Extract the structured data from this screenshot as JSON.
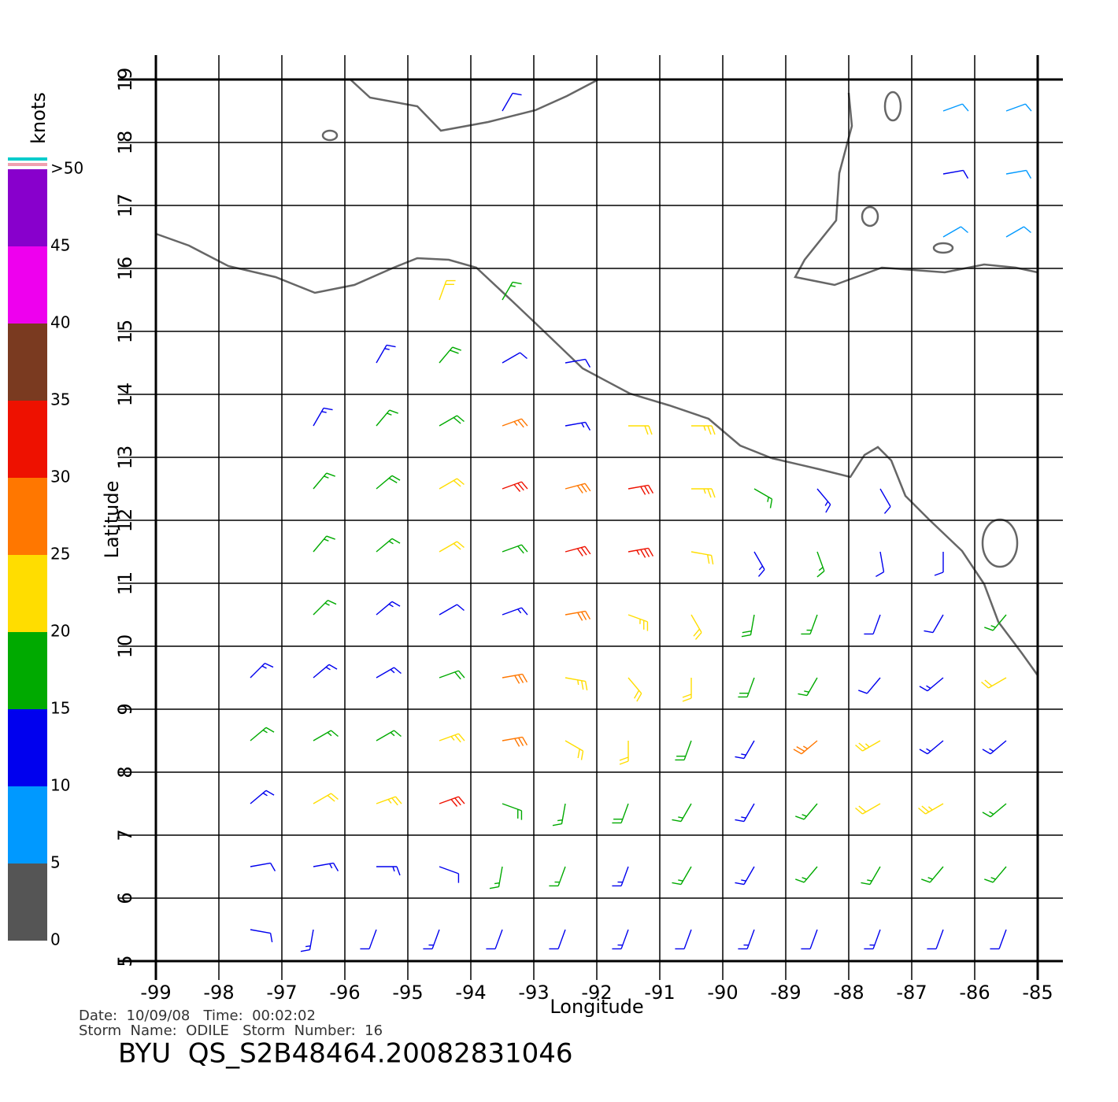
{
  "chart_data": {
    "type": "barb",
    "x_label": "Longitude",
    "y_label": "Latitude",
    "xlim": [
      -99,
      -85
    ],
    "ylim": [
      5,
      19
    ],
    "xticks": [
      -99,
      -98,
      -97,
      -96,
      -95,
      -94,
      -93,
      -92,
      -91,
      -90,
      -89,
      -88,
      -87,
      -86,
      -85
    ],
    "yticks": [
      5,
      6,
      7,
      8,
      9,
      10,
      11,
      12,
      13,
      14,
      15,
      16,
      17,
      18,
      19
    ],
    "grid": true,
    "colorbar": {
      "label": "knots",
      "ticks": [
        0,
        5,
        10,
        15,
        20,
        25,
        30,
        35,
        40,
        45,
        {
          "value": 50,
          "label": ">50"
        }
      ],
      "colors": [
        "#555555",
        "#0099ff",
        "#0000ee",
        "#00aa00",
        "#ffdd00",
        "#ff7700",
        "#ee1100",
        "#7a3a20",
        "#ee00ee",
        "#8800cc"
      ]
    },
    "points": [
      [
        -94.5,
        15.5,
        22,
        20
      ],
      [
        -93.5,
        15.5,
        15,
        30
      ],
      [
        -95.5,
        14.5,
        14,
        30
      ],
      [
        -94.5,
        14.5,
        18,
        40
      ],
      [
        -93.5,
        14.5,
        12,
        60
      ],
      [
        -92.5,
        14.5,
        10,
        80
      ],
      [
        -96.5,
        13.5,
        13,
        30
      ],
      [
        -95.5,
        13.5,
        16,
        40
      ],
      [
        -94.5,
        13.5,
        18,
        60
      ],
      [
        -93.5,
        13.5,
        26,
        70
      ],
      [
        -92.5,
        13.5,
        14,
        80
      ],
      [
        -91.5,
        13.5,
        22,
        90
      ],
      [
        -90.5,
        13.5,
        24,
        90
      ],
      [
        -96.5,
        12.5,
        17,
        40
      ],
      [
        -95.5,
        12.5,
        18,
        50
      ],
      [
        -94.5,
        12.5,
        22,
        60
      ],
      [
        -93.5,
        12.5,
        30,
        70
      ],
      [
        -92.5,
        12.5,
        28,
        75
      ],
      [
        -91.5,
        12.5,
        31,
        80
      ],
      [
        -90.5,
        12.5,
        24,
        90
      ],
      [
        -89.5,
        12.5,
        16,
        120
      ],
      [
        -88.5,
        12.5,
        14,
        140
      ],
      [
        -87.5,
        12.5,
        12,
        150
      ],
      [
        -96.5,
        11.5,
        17,
        40
      ],
      [
        -95.5,
        11.5,
        16,
        50
      ],
      [
        -94.5,
        11.5,
        22,
        60
      ],
      [
        -93.5,
        11.5,
        19,
        70
      ],
      [
        -92.5,
        11.5,
        32,
        75
      ],
      [
        -91.5,
        11.5,
        33,
        80
      ],
      [
        -90.5,
        11.5,
        22,
        100
      ],
      [
        -89.5,
        11.5,
        14,
        150
      ],
      [
        -88.5,
        11.5,
        16,
        160
      ],
      [
        -87.5,
        11.5,
        10,
        170
      ],
      [
        -86.5,
        11.5,
        11,
        180
      ],
      [
        -96.5,
        10.5,
        16,
        45
      ],
      [
        -95.5,
        10.5,
        14,
        50
      ],
      [
        -94.5,
        10.5,
        12,
        60
      ],
      [
        -93.5,
        10.5,
        13,
        70
      ],
      [
        -92.5,
        10.5,
        28,
        80
      ],
      [
        -91.5,
        10.5,
        24,
        110
      ],
      [
        -90.5,
        10.5,
        22,
        150
      ],
      [
        -89.5,
        10.5,
        18,
        190
      ],
      [
        -88.5,
        10.5,
        17,
        200
      ],
      [
        -87.5,
        10.5,
        12,
        200
      ],
      [
        -86.5,
        10.5,
        10,
        210
      ],
      [
        -85.5,
        10.5,
        16,
        220
      ],
      [
        -97.5,
        9.5,
        13,
        45
      ],
      [
        -96.5,
        9.5,
        14,
        50
      ],
      [
        -95.5,
        9.5,
        13,
        60
      ],
      [
        -94.5,
        9.5,
        19,
        70
      ],
      [
        -93.5,
        9.5,
        28,
        80
      ],
      [
        -92.5,
        9.5,
        23,
        100
      ],
      [
        -91.5,
        9.5,
        22,
        140
      ],
      [
        -90.5,
        9.5,
        21,
        180
      ],
      [
        -89.5,
        9.5,
        18,
        200
      ],
      [
        -88.5,
        9.5,
        17,
        210
      ],
      [
        -87.5,
        9.5,
        12,
        220
      ],
      [
        -86.5,
        9.5,
        13,
        230
      ],
      [
        -85.5,
        9.5,
        22,
        240
      ],
      [
        -97.5,
        8.5,
        16,
        50
      ],
      [
        -96.5,
        8.5,
        17,
        60
      ],
      [
        -95.5,
        8.5,
        15,
        60
      ],
      [
        -94.5,
        8.5,
        24,
        70
      ],
      [
        -93.5,
        8.5,
        28,
        80
      ],
      [
        -92.5,
        8.5,
        22,
        120
      ],
      [
        -91.5,
        8.5,
        21,
        180
      ],
      [
        -90.5,
        8.5,
        19,
        200
      ],
      [
        -89.5,
        8.5,
        14,
        210
      ],
      [
        -88.5,
        8.5,
        26,
        230
      ],
      [
        -87.5,
        8.5,
        24,
        240
      ],
      [
        -86.5,
        8.5,
        14,
        230
      ],
      [
        -85.5,
        8.5,
        13,
        230
      ],
      [
        -97.5,
        7.5,
        13,
        50
      ],
      [
        -96.5,
        7.5,
        22,
        60
      ],
      [
        -95.5,
        7.5,
        24,
        70
      ],
      [
        -94.5,
        7.5,
        30,
        70
      ],
      [
        -93.5,
        7.5,
        18,
        110
      ],
      [
        -92.5,
        7.5,
        17,
        190
      ],
      [
        -91.5,
        7.5,
        18,
        200
      ],
      [
        -90.5,
        7.5,
        17,
        210
      ],
      [
        -89.5,
        7.5,
        14,
        210
      ],
      [
        -88.5,
        7.5,
        16,
        220
      ],
      [
        -87.5,
        7.5,
        22,
        240
      ],
      [
        -86.5,
        7.5,
        24,
        240
      ],
      [
        -85.5,
        7.5,
        17,
        230
      ],
      [
        -97.5,
        6.5,
        12,
        80
      ],
      [
        -96.5,
        6.5,
        13,
        80
      ],
      [
        -95.5,
        6.5,
        14,
        90
      ],
      [
        -94.5,
        6.5,
        12,
        110
      ],
      [
        -93.5,
        6.5,
        15,
        190
      ],
      [
        -92.5,
        6.5,
        16,
        200
      ],
      [
        -91.5,
        6.5,
        14,
        200
      ],
      [
        -90.5,
        6.5,
        17,
        210
      ],
      [
        -89.5,
        6.5,
        13,
        210
      ],
      [
        -88.5,
        6.5,
        16,
        220
      ],
      [
        -87.5,
        6.5,
        15,
        210
      ],
      [
        -86.5,
        6.5,
        16,
        220
      ],
      [
        -85.5,
        6.5,
        17,
        220
      ],
      [
        -97.5,
        5.5,
        11,
        100
      ],
      [
        -96.5,
        5.5,
        14,
        190
      ],
      [
        -95.5,
        5.5,
        12,
        200
      ],
      [
        -94.5,
        5.5,
        13,
        200
      ],
      [
        -93.5,
        5.5,
        12,
        200
      ],
      [
        -92.5,
        5.5,
        12,
        200
      ],
      [
        -91.5,
        5.5,
        14,
        200
      ],
      [
        -90.5,
        5.5,
        11,
        200
      ],
      [
        -89.5,
        5.5,
        13,
        200
      ],
      [
        -88.5,
        5.5,
        12,
        200
      ],
      [
        -87.5,
        5.5,
        13,
        200
      ],
      [
        -86.5,
        5.5,
        12,
        200
      ],
      [
        -85.5,
        5.5,
        11,
        200
      ],
      [
        -93.5,
        18.5,
        10,
        30
      ],
      [
        -86.5,
        18.5,
        9,
        70
      ],
      [
        -85.5,
        18.5,
        8,
        70
      ],
      [
        -86.5,
        17.5,
        10,
        80
      ],
      [
        -85.5,
        17.5,
        9,
        80
      ],
      [
        -86.5,
        16.5,
        8,
        60
      ],
      [
        -85.5,
        16.5,
        9,
        60
      ]
    ]
  },
  "footer": {
    "date_line": "Date:  10/09/08   Time:  00:02:02",
    "storm_line": "Storm  Name:  ODILE   Storm  Number:  16",
    "file_line": "BYU  QS_S2B48464.20082831046"
  }
}
